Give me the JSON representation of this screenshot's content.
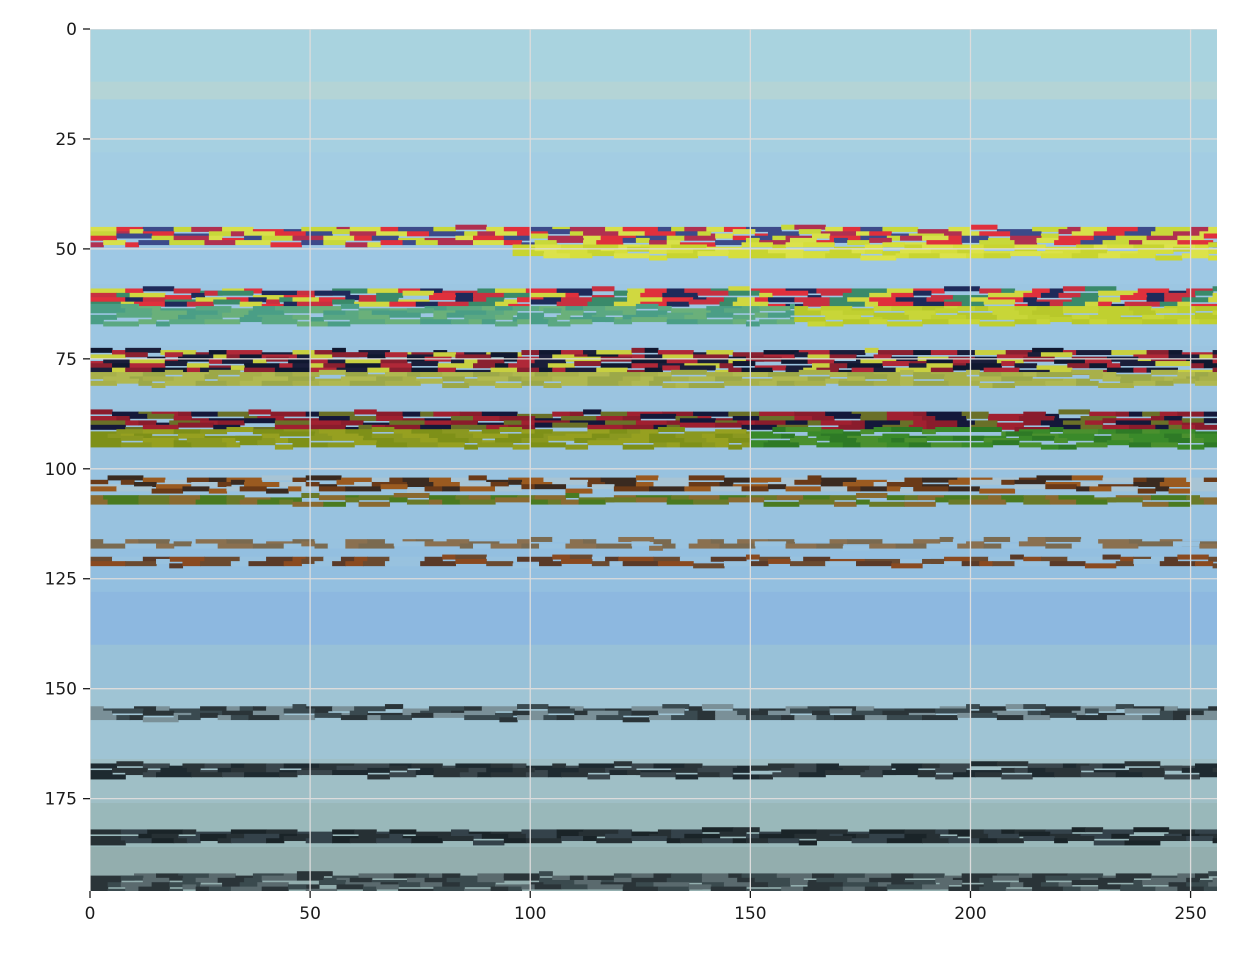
{
  "chart_data": {
    "type": "heatmap",
    "title": "",
    "xlabel": "",
    "ylabel": "",
    "image_width": 256,
    "image_height": 196,
    "xlim": [
      0,
      256
    ],
    "ylim": [
      196,
      0
    ],
    "y_axis_inverted": true,
    "x_ticks": [
      0,
      50,
      100,
      150,
      200,
      250
    ],
    "x_tick_labels": [
      "0",
      "50",
      "100",
      "150",
      "200",
      "250"
    ],
    "y_ticks": [
      0,
      25,
      50,
      75,
      100,
      125,
      150,
      175
    ],
    "y_tick_labels": [
      "0",
      "25",
      "50",
      "75",
      "100",
      "125",
      "150",
      "175"
    ],
    "grid": true,
    "grid_color": "#dcdcdc",
    "spines": false,
    "background_rows": [
      {
        "rows": [
          0,
          12
        ],
        "color": "#a9d3df"
      },
      {
        "rows": [
          12,
          16
        ],
        "color": "#b4d4d6"
      },
      {
        "rows": [
          16,
          28
        ],
        "color": "#a6d0e1"
      },
      {
        "rows": [
          28,
          46
        ],
        "color": "#a3cde3"
      },
      {
        "rows": [
          46,
          58
        ],
        "color": "#9ec8e4"
      },
      {
        "rows": [
          58,
          72
        ],
        "color": "#9cc6e2"
      },
      {
        "rows": [
          72,
          86
        ],
        "color": "#9bc4e0"
      },
      {
        "rows": [
          86,
          100
        ],
        "color": "#9ac3de"
      },
      {
        "rows": [
          100,
          116
        ],
        "color": "#98c2df"
      },
      {
        "rows": [
          116,
          128
        ],
        "color": "#93bfe0"
      },
      {
        "rows": [
          128,
          140
        ],
        "color": "#8db8e0"
      },
      {
        "rows": [
          140,
          150
        ],
        "color": "#98c1d8"
      },
      {
        "rows": [
          150,
          166
        ],
        "color": "#9fc4d4"
      },
      {
        "rows": [
          166,
          176
        ],
        "color": "#9fbfc6"
      },
      {
        "rows": [
          176,
          186
        ],
        "color": "#99b8ba"
      },
      {
        "rows": [
          186,
          196
        ],
        "color": "#93aeae"
      }
    ],
    "stripe_bands": [
      {
        "row_start": 45,
        "row_end": 49,
        "x_start": 0,
        "x_end": 256,
        "colors": [
          "#d8e04a",
          "#e0303c",
          "#3c4a8a",
          "#c8d83a",
          "#b03050"
        ]
      },
      {
        "row_start": 49,
        "row_end": 52,
        "x_start": 96,
        "x_end": 256,
        "colors": [
          "#d6de3c",
          "#c8d430",
          "#dce24a"
        ]
      },
      {
        "row_start": 59,
        "row_end": 63,
        "x_start": 0,
        "x_end": 256,
        "colors": [
          "#e0303c",
          "#1e2a5a",
          "#c83040",
          "#3a8a6a",
          "#d0d840"
        ]
      },
      {
        "row_start": 63,
        "row_end": 67,
        "x_start": 0,
        "x_end": 160,
        "colors": [
          "#4a9e86",
          "#5aa882",
          "#6ab07a"
        ]
      },
      {
        "row_start": 63,
        "row_end": 67,
        "x_start": 160,
        "x_end": 256,
        "colors": [
          "#c0d030",
          "#b8c82a",
          "#c8d638"
        ]
      },
      {
        "row_start": 73,
        "row_end": 78,
        "x_start": 0,
        "x_end": 256,
        "colors": [
          "#b02838",
          "#1a1e3a",
          "#c8d040",
          "#8a2030",
          "#101830"
        ]
      },
      {
        "row_start": 78,
        "row_end": 81,
        "x_start": 0,
        "x_end": 256,
        "colors": [
          "#a8b04a",
          "#b0b850",
          "#9ca848"
        ]
      },
      {
        "row_start": 87,
        "row_end": 91,
        "x_start": 0,
        "x_end": 256,
        "colors": [
          "#8a1c2c",
          "#14183a",
          "#6a7028",
          "#a02030"
        ]
      },
      {
        "row_start": 91,
        "row_end": 95,
        "x_start": 0,
        "x_end": 150,
        "colors": [
          "#8a9820",
          "#96a020",
          "#7e9018"
        ]
      },
      {
        "row_start": 91,
        "row_end": 95,
        "x_start": 150,
        "x_end": 256,
        "colors": [
          "#3a8a2a",
          "#2e7a26",
          "#4a902e"
        ]
      },
      {
        "row_start": 102,
        "row_end": 105,
        "x_start": 0,
        "x_end": 256,
        "colors": [
          "#6a3a18",
          "#3a2a20",
          "#9a5a20",
          "#a8c4d4"
        ]
      },
      {
        "row_start": 106,
        "row_end": 108,
        "x_start": 0,
        "x_end": 256,
        "colors": [
          "#4a7a20",
          "#6a7a28",
          "#8a6a30"
        ]
      },
      {
        "row_start": 116,
        "row_end": 118,
        "x_start": 0,
        "x_end": 256,
        "colors": [
          "#7a6a50",
          "#98c2df",
          "#8a7050"
        ]
      },
      {
        "row_start": 120,
        "row_end": 122,
        "x_start": 0,
        "x_end": 256,
        "colors": [
          "#8a4a20",
          "#6a4a30",
          "#98c2df",
          "#5a3a28"
        ]
      },
      {
        "row_start": 154,
        "row_end": 157,
        "x_start": 0,
        "x_end": 256,
        "colors": [
          "#3a4a50",
          "#2a3438",
          "#7a9098"
        ]
      },
      {
        "row_start": 167,
        "row_end": 170,
        "x_start": 0,
        "x_end": 256,
        "colors": [
          "#1e2a30",
          "#2a3438",
          "#3a464c"
        ]
      },
      {
        "row_start": 182,
        "row_end": 185,
        "x_start": 0,
        "x_end": 256,
        "colors": [
          "#1a2428",
          "#263034",
          "#34424a"
        ]
      },
      {
        "row_start": 192,
        "row_end": 196,
        "x_start": 0,
        "x_end": 256,
        "colors": [
          "#3a4a4e",
          "#5a6a6e",
          "#2a3438"
        ]
      }
    ]
  }
}
